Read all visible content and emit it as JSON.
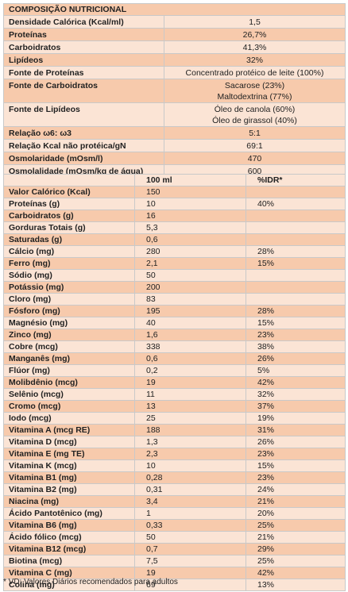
{
  "composition": {
    "title": "COMPOSIÇÃO NUTRICIONAL",
    "rows": [
      {
        "label": "Densidade Calórica (Kcal/ml)",
        "value": "1,5"
      },
      {
        "label": "Proteínas",
        "value": "26,7%"
      },
      {
        "label": "Carboidratos",
        "value": "41,3%"
      },
      {
        "label": "Lipídeos",
        "value": "32%"
      },
      {
        "label": "Fonte de Proteínas",
        "value": "Concentrado protéico de leite (100%)"
      },
      {
        "label": "Fonte de Carboidratos",
        "value_lines": [
          "Sacarose (23%)",
          "Maltodextrina (77%)"
        ]
      },
      {
        "label": "Fonte de Lipídeos",
        "value_lines": [
          "Óleo de canola (60%)",
          "Óleo de girassol (40%)"
        ]
      },
      {
        "label": "Relação ω6: ω3",
        "value": "5:1"
      },
      {
        "label": "Relação Kcal não protéica/gN",
        "value": "69:1"
      },
      {
        "label": "Osmolaridade (mOsm/l)",
        "value": "470"
      },
      {
        "label": "Osmolalidade (mOsm/kg de água)",
        "value": "600"
      }
    ]
  },
  "nutrients": {
    "headers": [
      "",
      "100 ml",
      "%IDR*"
    ],
    "rows": [
      {
        "label": "Valor Calórico (Kcal)",
        "value": "150",
        "idr": ""
      },
      {
        "label": "Proteínas (g)",
        "value": "10",
        "idr": "40%"
      },
      {
        "label": "Carboidratos (g)",
        "value": "16",
        "idr": ""
      },
      {
        "label": "Gorduras Totais (g)",
        "value": "5,3",
        "idr": ""
      },
      {
        "label": "Saturadas (g)",
        "value": "0,6",
        "idr": ""
      },
      {
        "label": "Cálcio (mg)",
        "value": "280",
        "idr": "28%"
      },
      {
        "label": "Ferro (mg)",
        "value": "2,1",
        "idr": "15%"
      },
      {
        "label": "Sódio (mg)",
        "value": "50",
        "idr": ""
      },
      {
        "label": "Potássio (mg)",
        "value": "200",
        "idr": ""
      },
      {
        "label": "Cloro (mg)",
        "value": "83",
        "idr": ""
      },
      {
        "label": "Fósforo (mg)",
        "value": "195",
        "idr": "28%"
      },
      {
        "label": "Magnésio (mg)",
        "value": "40",
        "idr": "15%"
      },
      {
        "label": "Zinco (mg)",
        "value": "1,6",
        "idr": "23%"
      },
      {
        "label": "Cobre (mcg)",
        "value": "338",
        "idr": "38%"
      },
      {
        "label": "Manganês (mg)",
        "value": "0,6",
        "idr": "26%"
      },
      {
        "label": "Flúor (mg)",
        "value": "0,2",
        "idr": "5%"
      },
      {
        "label": "Molibdênio (mcg)",
        "value": "19",
        "idr": "42%"
      },
      {
        "label": "Selênio (mcg)",
        "value": "11",
        "idr": "32%"
      },
      {
        "label": "Cromo (mcg)",
        "value": "13",
        "idr": "37%"
      },
      {
        "label": "Iodo (mcg)",
        "value": "25",
        "idr": "19%"
      },
      {
        "label": "Vitamina A (mcg RE)",
        "value": "188",
        "idr": "31%"
      },
      {
        "label": "Vitamina D (mcg)",
        "value": "1,3",
        "idr": "26%"
      },
      {
        "label": "Vitamina E (mg TE)",
        "value": "2,3",
        "idr": "23%"
      },
      {
        "label": "Vitamina K (mcg)",
        "value": "10",
        "idr": "15%"
      },
      {
        "label": "Vitamina B1 (mg)",
        "value": "0,28",
        "idr": "23%"
      },
      {
        "label": "Vitamina B2 (mg)",
        "value": "0,31",
        "idr": "24%"
      },
      {
        "label": "Niacina (mg)",
        "value": "3,4",
        "idr": "21%"
      },
      {
        "label": "Ácido Pantotênico (mg)",
        "value": "1",
        "idr": "20%"
      },
      {
        "label": "Vitamina B6 (mg)",
        "value": "0,33",
        "idr": "25%"
      },
      {
        "label": "Ácido fólico (mcg)",
        "value": "50",
        "idr": "21%"
      },
      {
        "label": "Vitamina B12 (mcg)",
        "value": "0,7",
        "idr": "29%"
      },
      {
        "label": "Biotina (mcg)",
        "value": "7,5",
        "idr": "25%"
      },
      {
        "label": "Vitamina C (mg)",
        "value": "19",
        "idr": "42%"
      },
      {
        "label": "Colina (mg)",
        "value": "69",
        "idr": "13%"
      }
    ]
  },
  "footnote": "* VD: Valores Diários recomendados para adultos",
  "colors": {
    "dark_row": "#f7caac",
    "light_row": "#fbe4d5",
    "border": "#c9c9c9"
  }
}
